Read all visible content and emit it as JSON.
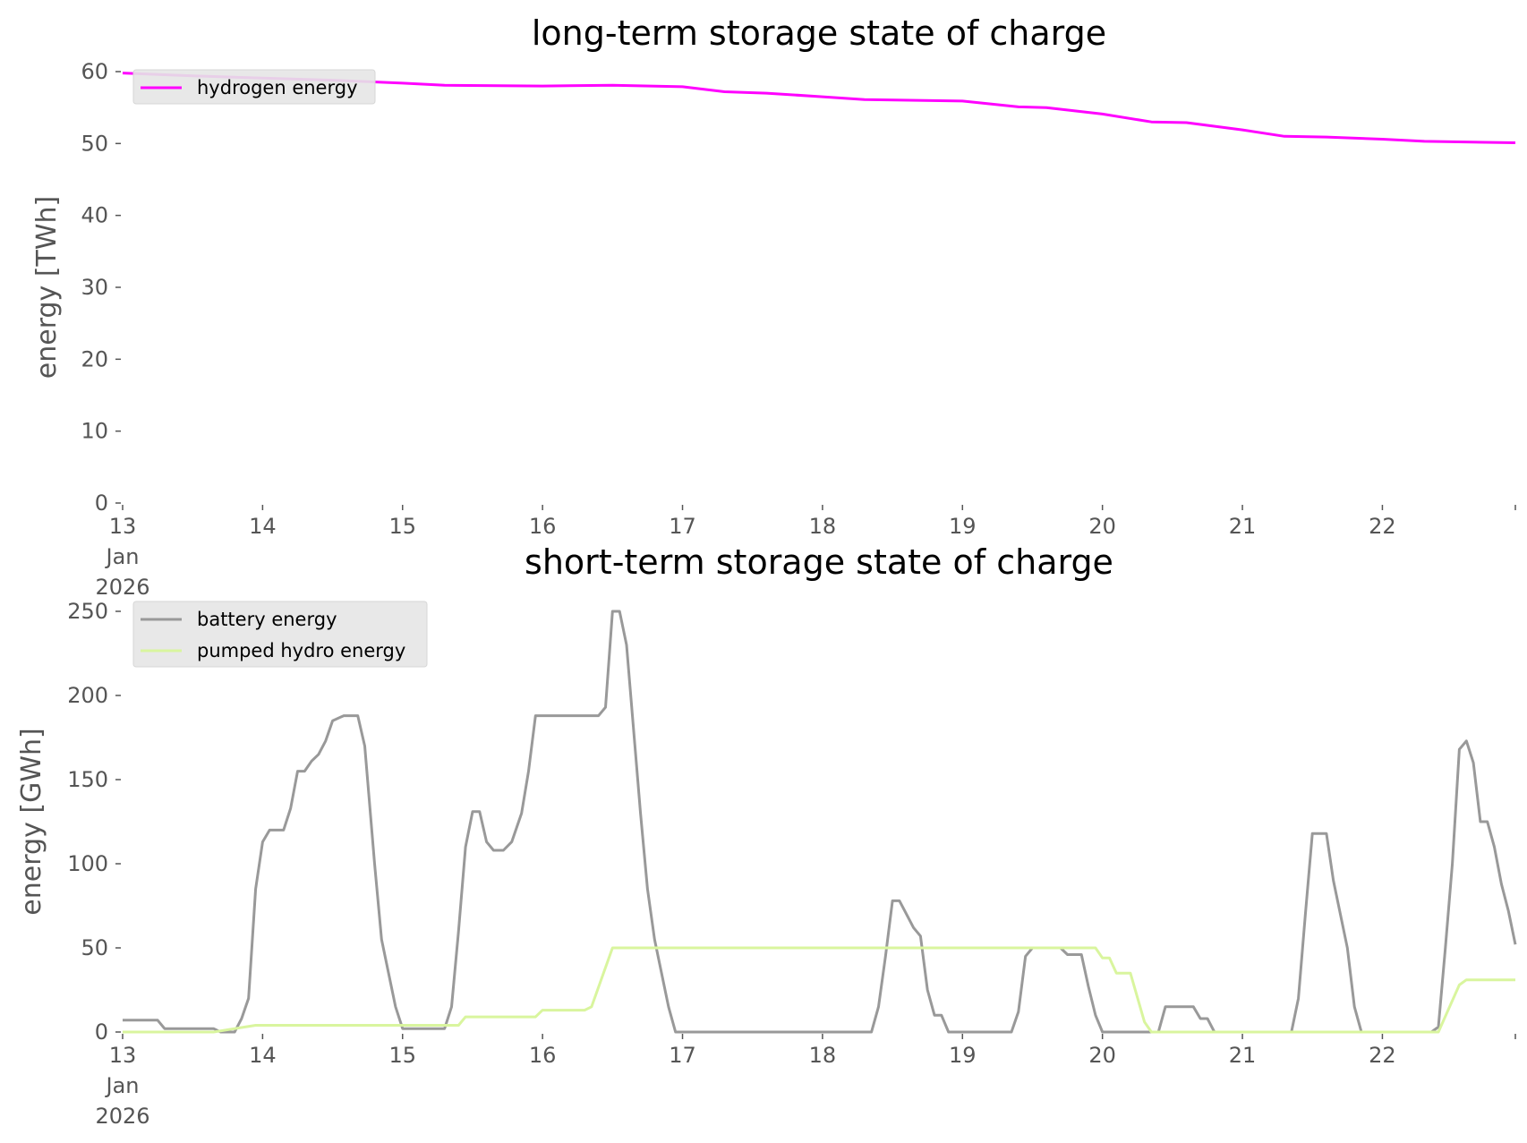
{
  "chart_data": [
    {
      "type": "line",
      "title": "long-term storage state of charge",
      "ylabel": "energy [TWh]",
      "xlabel": "",
      "ylim": [
        0,
        60
      ],
      "yticks": [
        "0",
        "10",
        "20",
        "30",
        "40",
        "50",
        "60"
      ],
      "xlim": [
        13,
        22.95
      ],
      "xticks": [
        {
          "value": 13,
          "lines": [
            "13",
            "Jan",
            "2026"
          ]
        },
        {
          "value": 14,
          "lines": [
            "14"
          ]
        },
        {
          "value": 15,
          "lines": [
            "15"
          ]
        },
        {
          "value": 16,
          "lines": [
            "16"
          ]
        },
        {
          "value": 17,
          "lines": [
            "17"
          ]
        },
        {
          "value": 18,
          "lines": [
            "18"
          ]
        },
        {
          "value": 19,
          "lines": [
            "19"
          ]
        },
        {
          "value": 20,
          "lines": [
            "20"
          ]
        },
        {
          "value": 21,
          "lines": [
            "21"
          ]
        },
        {
          "value": 22,
          "lines": [
            "22"
          ]
        }
      ],
      "grid": false,
      "legend": "top-left",
      "series": [
        {
          "name": "hydrogen energy",
          "color": "#ff00ff",
          "x": [
            13.0,
            13.5,
            14.0,
            14.5,
            15.0,
            15.3,
            16.0,
            16.5,
            17.0,
            17.3,
            17.6,
            18.0,
            18.3,
            19.0,
            19.4,
            19.6,
            20.0,
            20.35,
            20.6,
            21.0,
            21.3,
            21.6,
            22.0,
            22.3,
            22.95
          ],
          "values": [
            59.8,
            59.4,
            59.1,
            58.8,
            58.4,
            58.1,
            58.0,
            58.1,
            57.9,
            57.2,
            57.0,
            56.5,
            56.1,
            55.9,
            55.1,
            55.0,
            54.1,
            53.0,
            52.9,
            51.9,
            51.0,
            50.9,
            50.6,
            50.3,
            50.1
          ]
        }
      ]
    },
    {
      "type": "line",
      "title": "short-term storage state of charge",
      "ylabel": "energy [GWh]",
      "xlabel": "",
      "ylim": [
        0,
        250
      ],
      "yticks": [
        "0",
        "50",
        "100",
        "150",
        "200",
        "250"
      ],
      "xlim": [
        13,
        22.95
      ],
      "xticks": [
        {
          "value": 13,
          "lines": [
            "13",
            "Jan",
            "2026"
          ]
        },
        {
          "value": 14,
          "lines": [
            "14"
          ]
        },
        {
          "value": 15,
          "lines": [
            "15"
          ]
        },
        {
          "value": 16,
          "lines": [
            "16"
          ]
        },
        {
          "value": 17,
          "lines": [
            "17"
          ]
        },
        {
          "value": 18,
          "lines": [
            "18"
          ]
        },
        {
          "value": 19,
          "lines": [
            "19"
          ]
        },
        {
          "value": 20,
          "lines": [
            "20"
          ]
        },
        {
          "value": 21,
          "lines": [
            "21"
          ]
        },
        {
          "value": 22,
          "lines": [
            "22"
          ]
        }
      ],
      "grid": false,
      "legend": "top-left",
      "series": [
        {
          "name": "battery energy",
          "color": "#999999",
          "x": [
            13.0,
            13.25,
            13.3,
            13.65,
            13.7,
            13.8,
            13.85,
            13.9,
            13.95,
            14.0,
            14.05,
            14.15,
            14.2,
            14.25,
            14.3,
            14.35,
            14.4,
            14.45,
            14.5,
            14.58,
            14.62,
            14.68,
            14.73,
            14.8,
            14.85,
            14.9,
            14.95,
            15.0,
            15.3,
            15.35,
            15.4,
            15.45,
            15.5,
            15.55,
            15.6,
            15.65,
            15.72,
            15.78,
            15.85,
            15.9,
            15.95,
            16.0,
            16.05,
            16.4,
            16.45,
            16.5,
            16.55,
            16.6,
            16.65,
            16.7,
            16.75,
            16.8,
            16.85,
            16.9,
            16.95,
            18.35,
            18.4,
            18.45,
            18.5,
            18.55,
            18.65,
            18.7,
            18.75,
            18.8,
            18.85,
            18.9,
            18.95,
            19.35,
            19.4,
            19.45,
            19.5,
            19.7,
            19.75,
            19.85,
            19.9,
            19.95,
            20.0,
            20.4,
            20.45,
            20.5,
            20.65,
            20.7,
            20.75,
            20.8,
            21.35,
            21.4,
            21.45,
            21.5,
            21.55,
            21.6,
            21.65,
            21.7,
            21.75,
            21.8,
            21.85,
            21.9,
            22.35,
            22.4,
            22.45,
            22.5,
            22.55,
            22.6,
            22.65,
            22.7,
            22.75,
            22.8,
            22.85,
            22.9,
            22.95
          ],
          "values": [
            7,
            7,
            2,
            2,
            0,
            0,
            8,
            20,
            85,
            113,
            120,
            120,
            133,
            155,
            155,
            161,
            165,
            173,
            185,
            188,
            188,
            188,
            170,
            100,
            55,
            35,
            15,
            2,
            2,
            15,
            60,
            110,
            131,
            131,
            113,
            108,
            108,
            113,
            130,
            155,
            188,
            188,
            188,
            188,
            193,
            250,
            250,
            230,
            180,
            130,
            85,
            55,
            35,
            15,
            0,
            0,
            15,
            45,
            78,
            78,
            62,
            57,
            25,
            10,
            10,
            0,
            0,
            0,
            12,
            45,
            50,
            50,
            46,
            46,
            27,
            10,
            0,
            0,
            15,
            15,
            15,
            8,
            8,
            0,
            0,
            20,
            70,
            118,
            118,
            118,
            90,
            70,
            50,
            15,
            0,
            0,
            0,
            3,
            50,
            100,
            168,
            173,
            160,
            125,
            125,
            110,
            88,
            72,
            52
          ]
        },
        {
          "name": "pumped hydro energy",
          "color": "#d9f59e",
          "x": [
            13.0,
            13.65,
            13.95,
            14.75,
            15.4,
            15.45,
            15.95,
            16.0,
            16.3,
            16.35,
            16.5,
            19.95,
            20.0,
            20.05,
            20.1,
            20.2,
            20.3,
            20.35,
            20.4,
            22.4,
            22.55,
            22.6,
            22.95
          ],
          "values": [
            0,
            0,
            4,
            4,
            4,
            9,
            9,
            13,
            13,
            15,
            50,
            50,
            44,
            44,
            35,
            35,
            6,
            0,
            0,
            0,
            28,
            31,
            31
          ]
        }
      ]
    }
  ]
}
